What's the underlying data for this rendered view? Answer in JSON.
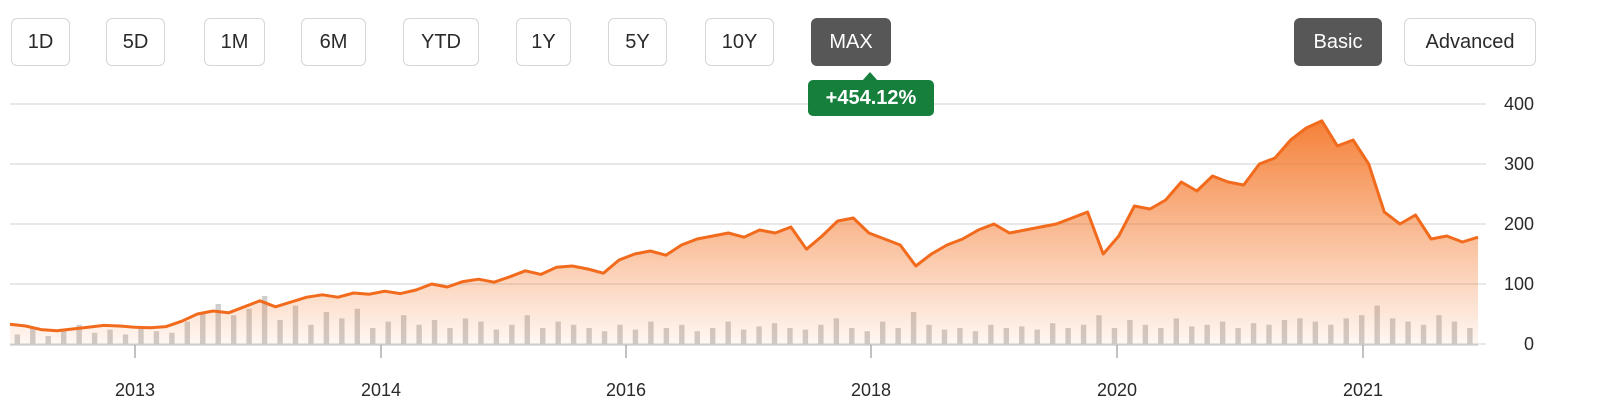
{
  "range_buttons": [
    "1D",
    "5D",
    "1M",
    "6M",
    "YTD",
    "1Y",
    "5Y",
    "10Y",
    "MAX"
  ],
  "active_range": "MAX",
  "view_buttons": [
    "Basic",
    "Advanced"
  ],
  "active_view": "Basic",
  "change_badge": "+454.12%",
  "colors": {
    "line": "#f26b1d",
    "area_top": "#f47a2e",
    "grid": "#d9d9d9",
    "volume": "#c9c9c9",
    "badge": "#157f3b",
    "active_button": "#575757"
  },
  "chart_data": {
    "type": "area",
    "title": "",
    "xlabel": "",
    "ylabel": "",
    "x_ticks": [
      "2013",
      "2014",
      "2016",
      "2018",
      "2020",
      "2021"
    ],
    "y_ticks": [
      0,
      100,
      200,
      300,
      400
    ],
    "ylim": [
      0,
      400
    ],
    "y_axis_side": "right",
    "grid": true,
    "series": [
      {
        "values": [
          33,
          30,
          24,
          22,
          25,
          28,
          31,
          30,
          28,
          27,
          29,
          38,
          50,
          55,
          52,
          62,
          72,
          62,
          70,
          78,
          82,
          78,
          85,
          83,
          88,
          84,
          90,
          100,
          95,
          104,
          108,
          103,
          112,
          122,
          116,
          128,
          130,
          125,
          118,
          140,
          150,
          155,
          148,
          165,
          175,
          180,
          185,
          178,
          190,
          185,
          195,
          158,
          180,
          205,
          210,
          185,
          175,
          165,
          130,
          150,
          165,
          175,
          190,
          200,
          185,
          190,
          195,
          200,
          210,
          220,
          150,
          180,
          230,
          225,
          240,
          270,
          255,
          280,
          270,
          265,
          300,
          310,
          340,
          360,
          372,
          330,
          340,
          300,
          220,
          200,
          215,
          175,
          180,
          170,
          178
        ]
      }
    ],
    "volume": [
      6,
      10,
      5,
      8,
      12,
      7,
      9,
      6,
      11,
      8,
      7,
      14,
      20,
      25,
      18,
      22,
      30,
      15,
      24,
      12,
      20,
      16,
      22,
      10,
      14,
      18,
      12,
      15,
      10,
      16,
      14,
      9,
      12,
      18,
      10,
      14,
      12,
      10,
      8,
      12,
      9,
      14,
      10,
      12,
      8,
      10,
      14,
      9,
      11,
      13,
      10,
      9,
      12,
      16,
      10,
      8,
      14,
      10,
      20,
      12,
      9,
      10,
      8,
      12,
      10,
      11,
      9,
      13,
      10,
      12,
      18,
      10,
      15,
      12,
      10,
      16,
      11,
      12,
      14,
      10,
      13,
      12,
      15,
      16,
      14,
      12,
      16,
      18,
      24,
      16,
      14,
      12,
      18,
      14,
      10
    ]
  }
}
